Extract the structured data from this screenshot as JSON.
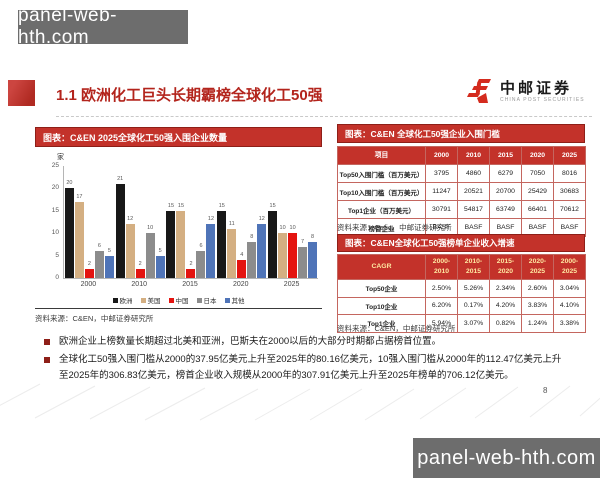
{
  "watermark": {
    "text": "panel-web-hth.com"
  },
  "header": {
    "title": "1.1 欧洲化工巨头长期霸榜全球化工50强",
    "logo_cn": "中邮证券",
    "logo_en": "CHINA POST SECURITIES"
  },
  "chart_panel": {
    "title": "图表：C&EN 2025全球化工50强入围企业数量",
    "source": "资料来源：C&EN，中邮证券研究所"
  },
  "chart_data": {
    "type": "bar",
    "title": "C&EN 2025全球化工50强入围企业数量",
    "unit_label": "家",
    "categories": [
      "2000",
      "2010",
      "2015",
      "2020",
      "2025"
    ],
    "series": [
      {
        "name": "欧洲",
        "color": "#181818",
        "values": [
          20,
          21,
          15,
          15,
          15
        ]
      },
      {
        "name": "美国",
        "color": "#d4af82",
        "values": [
          17,
          12,
          15,
          11,
          10
        ]
      },
      {
        "name": "中国",
        "color": "#e41410",
        "values": [
          2,
          2,
          2,
          4,
          10
        ]
      },
      {
        "name": "日本",
        "color": "#8c8c8c",
        "values": [
          6,
          10,
          6,
          8,
          7
        ]
      },
      {
        "name": "其他",
        "color": "#4f74b8",
        "values": [
          5,
          5,
          12,
          12,
          8
        ]
      }
    ],
    "ylim": [
      0,
      25
    ],
    "yticks": [
      0,
      5,
      10,
      15,
      20,
      25
    ],
    "grid": false,
    "legend_position": "bottom"
  },
  "table1": {
    "title": "图表：C&EN 全球化工50强企业入围门槛",
    "headers": [
      "项目",
      "2000",
      "2010",
      "2015",
      "2020",
      "2025"
    ],
    "rows": [
      [
        "Top50入围门槛（百万美元）",
        "3795",
        "4860",
        "6279",
        "7050",
        "8016"
      ],
      [
        "Top10入围门槛（百万美元）",
        "11247",
        "20521",
        "20700",
        "25429",
        "30683"
      ],
      [
        "Top1企业（百万美元）",
        "30791",
        "54817",
        "63749",
        "66401",
        "70612"
      ],
      [
        "榜首企业",
        "BASF",
        "BASF",
        "BASF",
        "BASF",
        "BASF"
      ]
    ],
    "source": "资料来源：Cefic，中邮证券研究所"
  },
  "table2": {
    "title": "图表：C&EN全球化工50强榜单企业收入增速",
    "headers": [
      "CAGR",
      "2000-\n2010",
      "2010-\n2015",
      "2015-\n2020",
      "2020-\n2025",
      "2000-\n2025"
    ],
    "rows": [
      [
        "Top50企业",
        "2.50%",
        "5.26%",
        "2.34%",
        "2.60%",
        "3.04%"
      ],
      [
        "Top10企业",
        "6.20%",
        "0.17%",
        "4.20%",
        "3.83%",
        "4.10%"
      ],
      [
        "Top1企业",
        "5.94%",
        "3.07%",
        "0.82%",
        "1.24%",
        "3.38%"
      ]
    ],
    "source": "资料来源：C&EN，中邮证券研究所"
  },
  "bullets": [
    "欧洲企业上榜数量长期超过北美和亚洲，巴斯夫在2000以后的大部分时期都占据榜首位置。",
    "全球化工50强入围门槛从2000的37.95亿美元上升至2025年的80.16亿美元，10强入围门槛从2000年的112.47亿美元上升至2025年的306.83亿美元，榜首企业收入规模从2000年的307.91亿美元上升至2025年榜单的706.12亿美元。"
  ],
  "page_number": "8",
  "colors": {
    "accent_red": "#c3322a",
    "dark_red": "#8e1f18",
    "title_red": "#b3241c",
    "watermark_gray": "#6d6d6d"
  }
}
